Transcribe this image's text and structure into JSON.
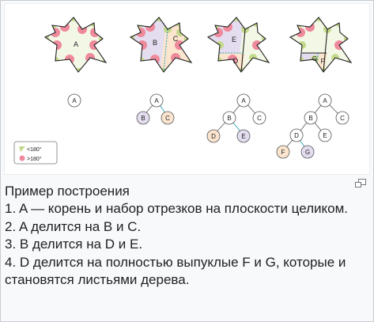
{
  "diagram": {
    "stages": [
      {
        "regions": [
          "A"
        ]
      },
      {
        "regions": [
          "B",
          "C"
        ]
      },
      {
        "regions": [
          "E",
          "D"
        ]
      },
      {
        "regions": [
          "G",
          "F"
        ]
      }
    ],
    "trees": [
      {
        "nodes": [
          {
            "id": "A",
            "color": "#ffffff"
          }
        ]
      },
      {
        "nodes": [
          {
            "id": "A",
            "color": "#ffffff"
          },
          {
            "id": "B",
            "color": "#e4dcef"
          },
          {
            "id": "C",
            "color": "#fbe5cf"
          }
        ]
      },
      {
        "nodes": [
          {
            "id": "A",
            "color": "#ffffff"
          },
          {
            "id": "B",
            "color": "#ffffff"
          },
          {
            "id": "C",
            "color": "#ffffff"
          },
          {
            "id": "D",
            "color": "#fbe5cf"
          },
          {
            "id": "E",
            "color": "#e4dcef"
          }
        ]
      },
      {
        "nodes": [
          {
            "id": "A",
            "color": "#ffffff"
          },
          {
            "id": "B",
            "color": "#ffffff"
          },
          {
            "id": "C",
            "color": "#ffffff"
          },
          {
            "id": "D",
            "color": "#ffffff"
          },
          {
            "id": "E",
            "color": "#ffffff"
          },
          {
            "id": "F",
            "color": "#fbe5cf"
          },
          {
            "id": "G",
            "color": "#e4dcef"
          }
        ]
      }
    ],
    "legend": {
      "convex_label": "<180°",
      "reflex_label": ">180°",
      "convex_color": "#c3d98a",
      "reflex_color": "#ee8a9c"
    },
    "colors": {
      "fill_light": "#f3f8e6",
      "fill_purple": "#e4dcef",
      "fill_orange": "#fbe5cf",
      "edge": "#1f1f1f",
      "split_line": "#2a9fb5"
    }
  },
  "caption": {
    "title": "Пример построения",
    "lines": [
      "1. A — корень и набор отрезков на плоскости целиком.",
      "2. A делится на B и C.",
      "3. B делится на D и E.",
      "4. D делится на полностью выпуклые F и G, которые и становятся листьями дерева."
    ]
  },
  "icons": {
    "magnify": "magnify-icon"
  }
}
